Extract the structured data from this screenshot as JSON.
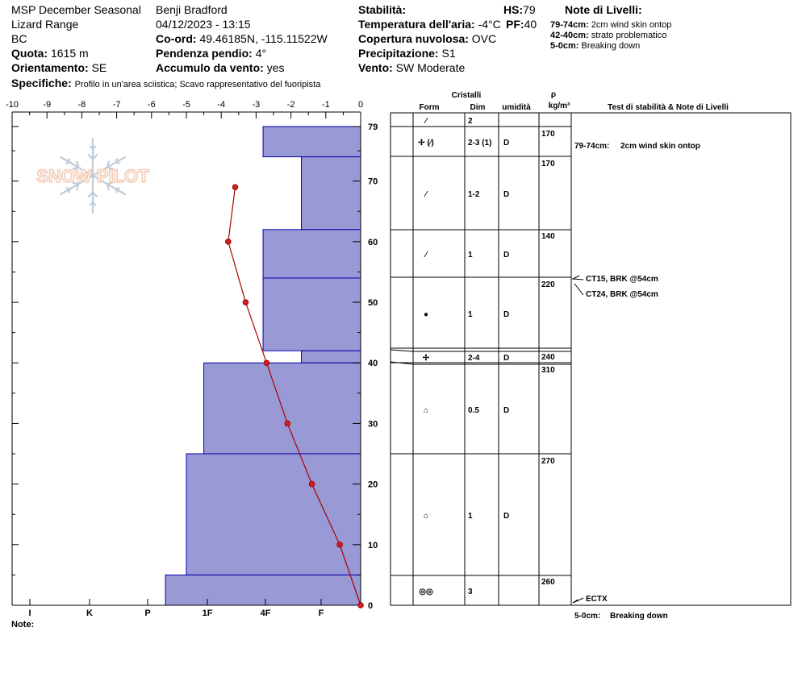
{
  "header": {
    "col1": [
      {
        "label": "",
        "value": "MSP December Seasonal"
      },
      {
        "label": "",
        "value": "Lizard Range"
      },
      {
        "label": "",
        "value": "BC"
      },
      {
        "label": "Quota:",
        "value": "1615 m"
      },
      {
        "label": "Orientamento:",
        "value": "SE"
      }
    ],
    "col2": [
      {
        "label": "",
        "value": "Benji Bradford"
      },
      {
        "label": "",
        "value": "04/12/2023 - 13:15"
      },
      {
        "label": "Co-ord:",
        "value": "49.46185N, -115.11522W"
      },
      {
        "label": "Pendenza pendio:",
        "value": "4°"
      },
      {
        "label": "Accumulo da vento:",
        "value": "yes"
      }
    ],
    "col3": [
      {
        "label": "Stabilità:",
        "value": ""
      },
      {
        "label": "Temperatura dell'aria:",
        "value": "-4°C"
      },
      {
        "label": "Copertura nuvolosa:",
        "value": "OVC"
      },
      {
        "label": "Precipitazione:",
        "value": "S1"
      },
      {
        "label": "Vento:",
        "value": "SW Moderate"
      }
    ],
    "hs": {
      "label": "HS:",
      "value": "79"
    },
    "pf": {
      "label": "PF:",
      "value": "40"
    },
    "specifiche": {
      "label": "Specifiche:",
      "value": "Profilo in un'area sciistica; Scavo rappresentativo del fuoripista"
    },
    "notes_title": "Note di Livelli:",
    "notes": [
      {
        "label": "79-74cm:",
        "value": "2cm wind skin ontop"
      },
      {
        "label": "42-40cm:",
        "value": "strato problematico"
      },
      {
        "label": "5-0cm:",
        "value": "Breaking down"
      }
    ]
  },
  "watermark": "SNOW PILOT",
  "chart_data": {
    "type": "snow_profile",
    "x_ticks": [
      -10,
      -9,
      -8,
      -7,
      -6,
      -5,
      -4,
      -3,
      -2,
      -1,
      0
    ],
    "xlim": [
      -10,
      0
    ],
    "y_ticks": [
      79,
      70,
      60,
      50,
      40,
      30,
      20,
      10,
      0
    ],
    "ylim": [
      0,
      79
    ],
    "hardness_scale": [
      {
        "label": "I",
        "value": 1
      },
      {
        "label": "K",
        "value": 2
      },
      {
        "label": "P",
        "value": 3
      },
      {
        "label": "1F",
        "value": 4
      },
      {
        "label": "4F",
        "value": 5
      },
      {
        "label": "F",
        "value": 6
      }
    ],
    "hardness_layers": [
      {
        "top": 79,
        "bottom": 74,
        "hardness": 2.8
      },
      {
        "top": 74,
        "bottom": 62,
        "hardness": 1.7
      },
      {
        "top": 62,
        "bottom": 54,
        "hardness": 2.8
      },
      {
        "top": 54,
        "bottom": 42,
        "hardness": 2.8
      },
      {
        "top": 42,
        "bottom": 40,
        "hardness": 1.7
      },
      {
        "top": 40,
        "bottom": 25,
        "hardness": 4.5
      },
      {
        "top": 25,
        "bottom": 5,
        "hardness": 5.0
      },
      {
        "top": 5,
        "bottom": 0,
        "hardness": 5.6
      }
    ],
    "temperature_profile": [
      {
        "depth": 69,
        "temp": -3.6
      },
      {
        "depth": 60,
        "temp": -3.8
      },
      {
        "depth": 50,
        "temp": -3.3
      },
      {
        "depth": 40,
        "temp": -2.7
      },
      {
        "depth": 30,
        "temp": -2.1
      },
      {
        "depth": 20,
        "temp": -1.4
      },
      {
        "depth": 10,
        "temp": -0.6
      },
      {
        "depth": 0,
        "temp": 0.0
      }
    ],
    "bottom_label": "Note:"
  },
  "table": {
    "headers": {
      "cristalli": "Cristalli",
      "form": "Form",
      "dim": "Dim",
      "umidita": "umidità",
      "rho": "ρ",
      "rho_unit": "kg/m³",
      "stab": "Test di stabilità & Note di Livelli"
    },
    "layers": [
      {
        "form": "⁄",
        "dim": "2",
        "wet": "",
        "rho": ""
      },
      {
        "form": "✢ (⁄)",
        "dim": "2-3 (1)",
        "wet": "D",
        "rho": "170"
      },
      {
        "form": "⁄",
        "dim": "1-2",
        "wet": "D",
        "rho": "170"
      },
      {
        "form": "⁄",
        "dim": "1",
        "wet": "D",
        "rho": "140"
      },
      {
        "form": "●",
        "dim": "1",
        "wet": "D",
        "rho": "220"
      },
      {
        "form": "✢",
        "dim": "2-4",
        "wet": "D",
        "rho": "240"
      },
      {
        "form": "⌂",
        "dim": "0.5",
        "wet": "D",
        "rho": "310"
      },
      {
        "form": "⌂",
        "dim": "1",
        "wet": "D",
        "rho": "270"
      },
      {
        "form": "◎◎",
        "dim": "3",
        "wet": "",
        "rho": "260"
      }
    ],
    "notes": [
      {
        "label": "79-74cm:",
        "value": "2cm wind skin ontop"
      }
    ],
    "tests": [
      "CT15, BRK @54cm",
      "CT24, BRK @54cm",
      "ECTX"
    ],
    "bottom_note": {
      "label": "5-0cm:",
      "value": "Breaking down"
    }
  },
  "colors": {
    "layer_fill": "#9999d6",
    "layer_stroke": "#0000aa",
    "temp_line": "#aa0000",
    "temp_point": "#cc2222"
  }
}
